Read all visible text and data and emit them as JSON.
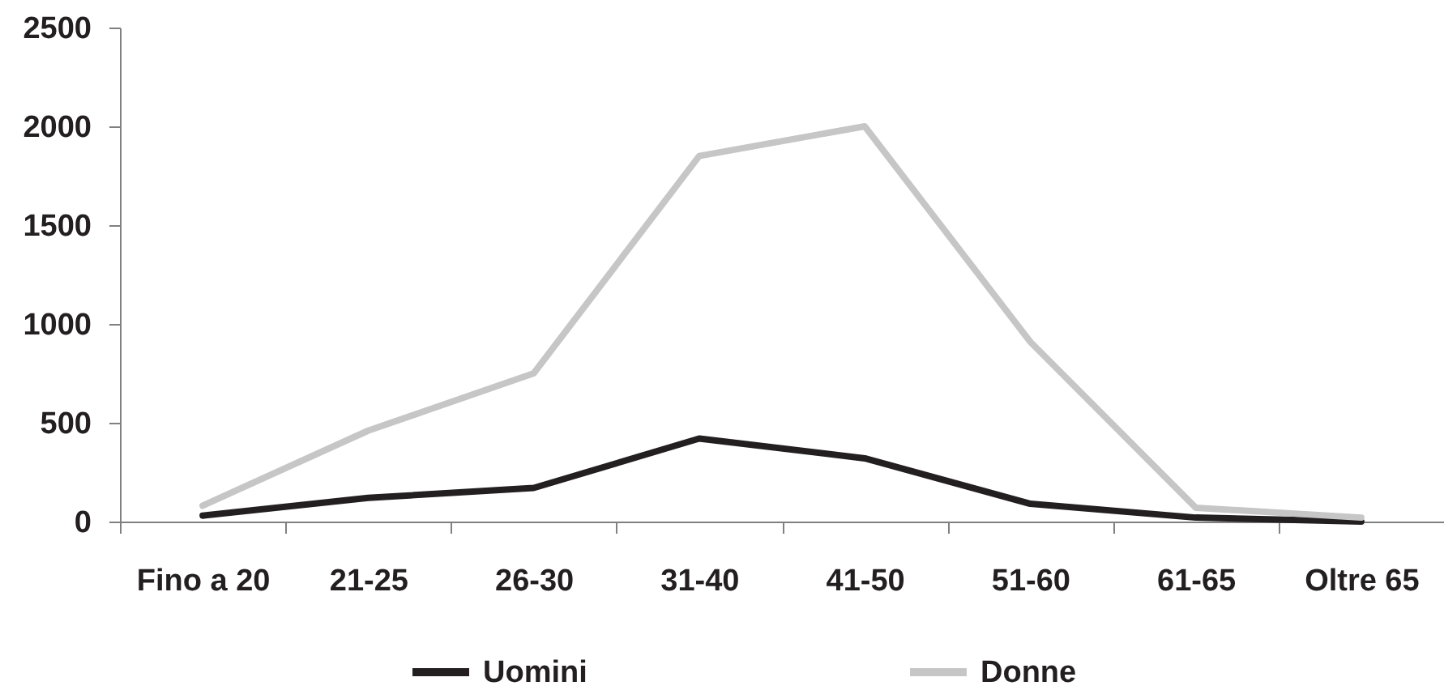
{
  "chart_data": {
    "type": "line",
    "categories": [
      "Fino a 20",
      "21-25",
      "26-30",
      "31-40",
      "41-50",
      "51-60",
      "61-65",
      "Oltre 65"
    ],
    "series": [
      {
        "name": "Uomini",
        "color": "#231f20",
        "values": [
          30,
          120,
          170,
          420,
          320,
          90,
          20,
          0
        ]
      },
      {
        "name": "Donne",
        "color": "#c6c6c6",
        "values": [
          80,
          460,
          750,
          1850,
          2000,
          910,
          70,
          20
        ]
      }
    ],
    "ylim": [
      0,
      2500
    ],
    "yticks": [
      0,
      500,
      1000,
      1500,
      2000,
      2500
    ],
    "grid": false,
    "legend": "bottom",
    "line_style": "solid"
  }
}
